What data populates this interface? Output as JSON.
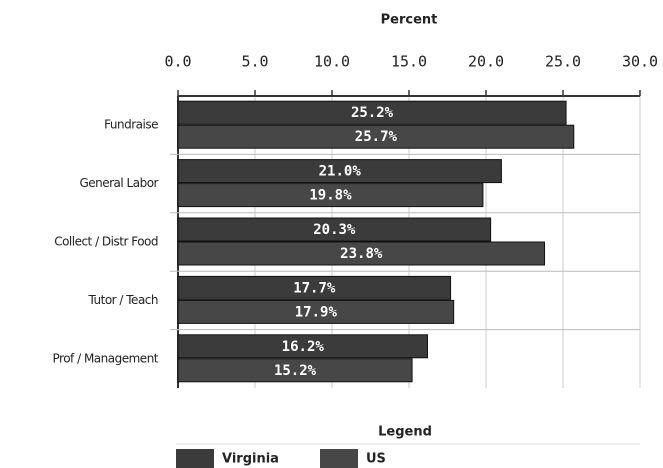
{
  "chart_data": {
    "type": "hbar",
    "xlabel": "Percent",
    "categories": [
      "Fundraise",
      "General Labor",
      "Collect / Distr Food",
      "Tutor / Teach",
      "Prof / Management"
    ],
    "series": [
      {
        "name": "Virginia",
        "color": "#3b3b3b",
        "values": [
          25.2,
          21.0,
          20.3,
          17.7,
          16.2
        ],
        "value_labels": [
          "25.2%",
          "21.0%",
          "20.3%",
          "17.7%",
          "16.2%"
        ]
      },
      {
        "name": "US",
        "color": "#474747",
        "values": [
          25.7,
          19.8,
          23.8,
          17.9,
          15.2
        ],
        "value_labels": [
          "25.7%",
          "19.8%",
          "23.8%",
          "17.9%",
          "15.2%"
        ]
      }
    ],
    "xlim": [
      0,
      30
    ],
    "xticks": [
      {
        "value": 0,
        "label": "0.0"
      },
      {
        "value": 5,
        "label": "5.0"
      },
      {
        "value": 10,
        "label": "10.0"
      },
      {
        "value": 15,
        "label": "15.0"
      },
      {
        "value": 20,
        "label": "20.0"
      },
      {
        "value": 25,
        "label": "25.0"
      },
      {
        "value": 30,
        "label": "30.0"
      }
    ],
    "grid": true,
    "legend_title": "Legend",
    "legend_position": "bottom"
  }
}
